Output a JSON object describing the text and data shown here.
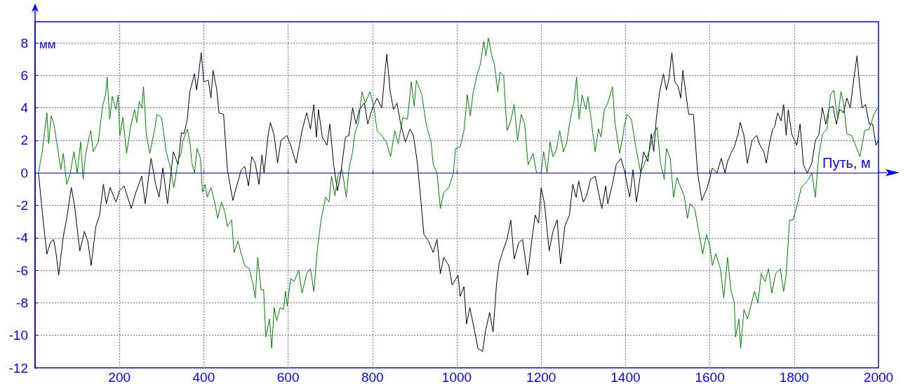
{
  "chart_data": {
    "type": "line",
    "xlabel": "Путь, м",
    "ylabel": "мм",
    "xlim": [
      0,
      2000
    ],
    "xticks": [
      200,
      400,
      600,
      800,
      1000,
      1200,
      1400,
      1600,
      1800,
      2000
    ],
    "ylim": [
      -12,
      9.3
    ],
    "yticks": [
      -12,
      -10,
      -8,
      -6,
      -4,
      -2,
      0,
      2,
      4,
      6,
      8
    ],
    "grid": true,
    "ref_lines": [
      {
        "axis": "y",
        "value": 0,
        "color": "#0000ff"
      }
    ],
    "series": [
      {
        "color": "#000000",
        "x": [
          8,
          19,
          28,
          36,
          44,
          50,
          56,
          67,
          75,
          86,
          94,
          106,
          117,
          125,
          133,
          144,
          153,
          162,
          169,
          178,
          192,
          200,
          211,
          228,
          239,
          253,
          261,
          275,
          286,
          294,
          303,
          314,
          328,
          339,
          347,
          353,
          361,
          367,
          378,
          383,
          394,
          400,
          411,
          417,
          422,
          431,
          436,
          447,
          456,
          469,
          478,
          489,
          497,
          506,
          514,
          522,
          531,
          538,
          543,
          553,
          558,
          567,
          575,
          583,
          597,
          606,
          619,
          633,
          644,
          653,
          661,
          667,
          672,
          681,
          692,
          699,
          708,
          717,
          725,
          736,
          744,
          753,
          761,
          769,
          781,
          789,
          800,
          811,
          822,
          829,
          834,
          842,
          850,
          858,
          867,
          878,
          889,
          897,
          906,
          914,
          922,
          933,
          944,
          953,
          961,
          969,
          981,
          989,
          1003,
          1008,
          1017,
          1023,
          1031,
          1042,
          1050,
          1061,
          1069,
          1078,
          1086,
          1094,
          1100,
          1108,
          1119,
          1128,
          1136,
          1147,
          1156,
          1168,
          1178,
          1186,
          1194,
          1200,
          1208,
          1219,
          1228,
          1238,
          1246,
          1256,
          1267,
          1275,
          1283,
          1289,
          1300,
          1308,
          1317,
          1328,
          1336,
          1344,
          1353,
          1358,
          1369,
          1378,
          1389,
          1397,
          1410,
          1418,
          1426,
          1436,
          1443,
          1453,
          1461,
          1467,
          1473,
          1481,
          1490,
          1497,
          1503,
          1510,
          1517,
          1525,
          1531,
          1536,
          1544,
          1550,
          1561,
          1571,
          1581,
          1594,
          1606,
          1617,
          1627,
          1636,
          1642,
          1650,
          1658,
          1667,
          1672,
          1681,
          1689,
          1700,
          1711,
          1719,
          1728,
          1734,
          1742,
          1749,
          1753,
          1761,
          1769,
          1775,
          1781,
          1786,
          1794,
          1806,
          1814,
          1822,
          1831,
          1842,
          1850,
          1858,
          1867,
          1875,
          1883,
          1892,
          1900,
          1908,
          1917,
          1925,
          1933,
          1943,
          1949,
          1954,
          1961,
          1969,
          1978,
          1986,
          1994,
          2000
        ],
        "values": [
          0,
          -2.9,
          -5.0,
          -4.3,
          -4.1,
          -5.0,
          -6.3,
          -3.9,
          -2.8,
          -0.9,
          -2.1,
          -4.8,
          -3.6,
          -4.2,
          -5.7,
          -3.3,
          -2.6,
          -0.7,
          -1.9,
          -0.9,
          -1.8,
          -1.1,
          -0.8,
          -2.2,
          -1.2,
          -0.2,
          -1.9,
          0.9,
          -0.7,
          -1.5,
          0.3,
          -1.9,
          1.3,
          0.5,
          2.5,
          2.4,
          3.3,
          5.0,
          6.1,
          5.1,
          7.4,
          5.6,
          5.7,
          4.6,
          6.3,
          5.1,
          3.7,
          3.6,
          0.2,
          -1.7,
          -0.8,
          0.2,
          0.4,
          -0.8,
          1.0,
          0.6,
          -0.7,
          1.1,
          0,
          2.4,
          3.1,
          2.3,
          0.6,
          2.0,
          2.3,
          1.7,
          0.6,
          2.6,
          3.7,
          2.7,
          4.2,
          2.2,
          3.9,
          2.2,
          1.7,
          3.0,
          0.5,
          -1.1,
          0,
          2.2,
          2.3,
          4.0,
          3.0,
          3.9,
          4.3,
          3.0,
          4.0,
          4.6,
          4.0,
          6.0,
          7.3,
          5.0,
          3.9,
          4.3,
          3.0,
          1.9,
          2.7,
          2.3,
          0.7,
          -1.5,
          -3.8,
          -4.2,
          -4.9,
          -4.1,
          -6.2,
          -5.2,
          -5.7,
          -6.9,
          -6.3,
          -7.6,
          -7.0,
          -9.3,
          -8.3,
          -9.7,
          -10.8,
          -11.0,
          -9.6,
          -8.6,
          -9.8,
          -6.9,
          -5.6,
          -4.9,
          -4.1,
          -2.9,
          -5.3,
          -4.3,
          -4.1,
          -6.3,
          -4.1,
          -2.6,
          -3.1,
          -0.9,
          -1.9,
          -4.8,
          -3.6,
          -2.9,
          -5.6,
          -3.3,
          -2.6,
          -0.7,
          -1.5,
          -0.5,
          -1.8,
          -1.4,
          -0.4,
          -0.2,
          -1.2,
          -2.2,
          -0.8,
          -1.9,
          -0.7,
          0.5,
          0.9,
          0.2,
          -1.5,
          0.2,
          -1.8,
          0,
          1.3,
          0.7,
          2.4,
          1.3,
          3.3,
          5.0,
          6.1,
          5.1,
          5.8,
          7.4,
          5.6,
          5.3,
          4.6,
          6.3,
          4.7,
          3.6,
          3.6,
          0,
          -1.7,
          -0.9,
          0.3,
          0,
          0.9,
          0,
          0.7,
          1.2,
          1.6,
          2.4,
          3.1,
          2.3,
          0.6,
          2.0,
          2.3,
          1.7,
          1.3,
          0.6,
          1.9,
          2.7,
          2.8,
          3.7,
          3.2,
          4.2,
          2.3,
          3.9,
          2.4,
          1.7,
          3.0,
          0.5,
          0,
          0.6,
          2.0,
          2.3,
          4.0,
          3.0,
          4.0,
          4.1,
          3.0,
          3.9,
          3.7,
          4.6,
          4.0,
          6.1,
          7.2,
          5.7,
          4.0,
          4.2,
          3.0,
          3.0,
          1.7,
          2.0
        ]
      },
      {
        "color": "#008000",
        "x": [
          8,
          17,
          23,
          28,
          32,
          38,
          44,
          53,
          61,
          67,
          75,
          83,
          92,
          100,
          108,
          114,
          119,
          128,
          132,
          138,
          150,
          160,
          167,
          171,
          177,
          183,
          192,
          197,
          201,
          208,
          217,
          227,
          236,
          241,
          247,
          253,
          257,
          264,
          272,
          283,
          289,
          300,
          311,
          322,
          329,
          339,
          347,
          350,
          361,
          367,
          372,
          378,
          384,
          392,
          397,
          403,
          408,
          417,
          425,
          433,
          442,
          450,
          456,
          466,
          472,
          481,
          489,
          497,
          508,
          517,
          522,
          528,
          536,
          542,
          547,
          556,
          561,
          567,
          573,
          581,
          589,
          594,
          598,
          606,
          614,
          625,
          633,
          644,
          653,
          661,
          669,
          678,
          689,
          697,
          703,
          711,
          719,
          728,
          738,
          744,
          753,
          758,
          767,
          775,
          783,
          794,
          803,
          811,
          822,
          833,
          843,
          853,
          861,
          872,
          883,
          892,
          899,
          904,
          917,
          928,
          939,
          944,
          953,
          961,
          969,
          981,
          992,
          997,
          1008,
          1017,
          1025,
          1032,
          1039,
          1049,
          1056,
          1064,
          1069,
          1075,
          1083,
          1089,
          1097,
          1103,
          1111,
          1119,
          1128,
          1136,
          1144,
          1153,
          1161,
          1169,
          1181,
          1189,
          1200,
          1206,
          1214,
          1221,
          1228,
          1236,
          1244,
          1253,
          1261,
          1269,
          1278,
          1284,
          1290,
          1297,
          1306,
          1311,
          1319,
          1328,
          1336,
          1342,
          1350,
          1358,
          1369,
          1375,
          1386,
          1394,
          1397,
          1404,
          1414,
          1425,
          1436,
          1444,
          1456,
          1467,
          1475,
          1483,
          1492,
          1497,
          1506,
          1514,
          1522,
          1531,
          1539,
          1547,
          1553,
          1564,
          1575,
          1583,
          1592,
          1600,
          1606,
          1614,
          1625,
          1633,
          1642,
          1650,
          1658,
          1661,
          1669,
          1673,
          1681,
          1689,
          1697,
          1706,
          1714,
          1722,
          1731,
          1739,
          1747,
          1756,
          1767,
          1775,
          1781,
          1789,
          1797,
          1806,
          1817,
          1831,
          1842,
          1850,
          1858,
          1867,
          1878,
          1886,
          1894,
          1903,
          1911,
          1917,
          1925,
          1936,
          1947,
          1956,
          1967,
          1978,
          1989,
          2000
        ],
        "values": [
          0,
          1.3,
          2.6,
          3.7,
          1.8,
          3.5,
          3.1,
          1.6,
          0.2,
          1.2,
          -0.7,
          -0.1,
          1.3,
          0,
          1.9,
          -0.4,
          1.0,
          2.2,
          2.6,
          1.3,
          1.9,
          4.1,
          4.8,
          5.9,
          3.3,
          4.7,
          3.9,
          4.8,
          2.3,
          3.4,
          1.2,
          2.9,
          3.9,
          3.1,
          4.4,
          4.0,
          5.3,
          2.3,
          1.2,
          2.6,
          3.6,
          3.4,
          1.3,
          0.2,
          -0.9,
          0.7,
          1.3,
          1.9,
          2.7,
          1.9,
          0.6,
          0,
          1.5,
          0.9,
          -1.2,
          -0.7,
          -1.5,
          -0.9,
          -1.7,
          -2.8,
          -1.8,
          -2.4,
          -3.3,
          -2.9,
          -4.9,
          -4.2,
          -5.0,
          -5.7,
          -5.9,
          -6.9,
          -7.7,
          -5.2,
          -7.2,
          -7.2,
          -10.1,
          -9.0,
          -10.8,
          -8.3,
          -9.1,
          -8.3,
          -8.4,
          -7.3,
          -8.2,
          -6.5,
          -6.7,
          -6.0,
          -7.4,
          -6.2,
          -5.9,
          -7.3,
          -4.8,
          -2.9,
          -1.5,
          -1.8,
          -0.2,
          -1.4,
          -0.1,
          0.2,
          -1.5,
          0.2,
          1.3,
          2.4,
          3.1,
          5.0,
          4.3,
          5.0,
          4.1,
          2.6,
          2.3,
          1.9,
          1.0,
          2.6,
          1.8,
          3.4,
          3.3,
          5.6,
          4.1,
          5.7,
          4.8,
          2.9,
          1.9,
          0.5,
          0,
          -2.2,
          -1.2,
          -0.9,
          0,
          1.5,
          1.6,
          2.6,
          4.8,
          3.5,
          5.0,
          6.1,
          6.7,
          8.1,
          7.2,
          8.3,
          7.2,
          6.7,
          5.0,
          6.2,
          6.0,
          2.6,
          3.2,
          4.2,
          2.0,
          3.6,
          3.0,
          0.5,
          1.2,
          0,
          0,
          1.3,
          0,
          1.9,
          1.0,
          1.4,
          2.6,
          1.3,
          1.9,
          3.3,
          4.4,
          5.9,
          3.3,
          4.8,
          3.9,
          4.7,
          3.2,
          1.3,
          2.7,
          2.2,
          3.9,
          4.3,
          5.3,
          3.1,
          1.2,
          2.3,
          2.9,
          3.6,
          3.3,
          1.5,
          0,
          0.5,
          1.3,
          2.4,
          2.8,
          0.6,
          -0.4,
          1.5,
          0.9,
          -1.5,
          -0.3,
          -0.9,
          -1.4,
          -2.8,
          -1.9,
          -2.2,
          -3.8,
          -5.0,
          -3.8,
          -4.5,
          -5.7,
          -5.0,
          -5.9,
          -7.7,
          -5.2,
          -7.2,
          -8.0,
          -10.1,
          -9.0,
          -10.8,
          -8.4,
          -9.0,
          -8.2,
          -7.3,
          -8.0,
          -6.2,
          -6.7,
          -5.9,
          -7.4,
          -6.2,
          -5.9,
          -7.3,
          -6.3,
          -2.9,
          -2.9,
          -2.1,
          -0.9,
          -0.5,
          0,
          -1.5,
          1.0,
          2.4,
          2.7,
          4.8,
          5.1,
          3.3,
          5.0,
          4.3,
          2.4,
          2.3,
          1.6,
          1.0,
          2.6,
          2.7,
          3.6,
          4.1
        ]
      }
    ]
  }
}
